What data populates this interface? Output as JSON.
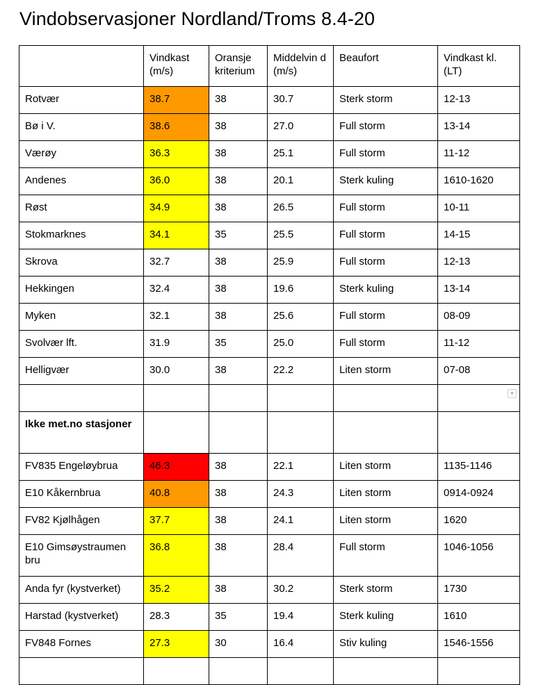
{
  "title": "Vindobservasjoner Nordland/Troms 8.4-20",
  "headers": [
    "",
    "Vindkast (m/s)",
    "Oransje kriterium",
    "Middelvin d (m/s)",
    "Beaufort",
    "Vindkast kl. (LT)"
  ],
  "colors": {
    "yellow": "#ffff00",
    "orange": "#ff9900",
    "red": "#ff0000"
  },
  "stations": [
    {
      "name": "Rotvær",
      "gust": "38.7",
      "gust_level": "orange",
      "criterion": "38",
      "mean": "30.7",
      "beaufort": "Sterk storm",
      "time": "12-13"
    },
    {
      "name": "Bø i V.",
      "gust": "38.6",
      "gust_level": "orange",
      "criterion": "38",
      "mean": "27.0",
      "beaufort": "Full storm",
      "time": "13-14"
    },
    {
      "name": "Værøy",
      "gust": "36.3",
      "gust_level": "yellow",
      "criterion": "38",
      "mean": "25.1",
      "beaufort": "Full storm",
      "time": "11-12"
    },
    {
      "name": "Andenes",
      "gust": "36.0",
      "gust_level": "yellow",
      "criterion": "38",
      "mean": "20.1",
      "beaufort": "Sterk kuling",
      "time": "1610-1620"
    },
    {
      "name": "Røst",
      "gust": "34.9",
      "gust_level": "yellow",
      "criterion": "38",
      "mean": "26.5",
      "beaufort": "Full storm",
      "time": "10-11"
    },
    {
      "name": "Stokmarknes",
      "gust": "34.1",
      "gust_level": "yellow",
      "criterion": "35",
      "mean": "25.5",
      "beaufort": "Full storm",
      "time": "14-15"
    },
    {
      "name": "Skrova",
      "gust": "32.7",
      "gust_level": "none",
      "criterion": "38",
      "mean": "25.9",
      "beaufort": "Full storm",
      "time": "12-13"
    },
    {
      "name": "Hekkingen",
      "gust": "32.4",
      "gust_level": "none",
      "criterion": "38",
      "mean": "19.6",
      "beaufort": "Sterk kuling",
      "time": "13-14"
    },
    {
      "name": "Myken",
      "gust": "32.1",
      "gust_level": "none",
      "criterion": "38",
      "mean": "25.6",
      "beaufort": "Full storm",
      "time": "08-09"
    },
    {
      "name": "Svolvær lft.",
      "gust": "31.9",
      "gust_level": "none",
      "criterion": "35",
      "mean": "25.0",
      "beaufort": "Full storm",
      "time": "11-12"
    },
    {
      "name": "Helligvær",
      "gust": "30.0",
      "gust_level": "none",
      "criterion": "38",
      "mean": "22.2",
      "beaufort": "Liten storm",
      "time": "07-08"
    }
  ],
  "section_label": "Ikke met.no stasjoner",
  "other_stations": [
    {
      "name": "FV835 Engeløybrua",
      "gust": "46.3",
      "gust_level": "red",
      "criterion": "38",
      "mean": "22.1",
      "beaufort": "Liten storm",
      "time": "1135-1146"
    },
    {
      "name": "E10 Kåkernbrua",
      "gust": "40.8",
      "gust_level": "orange",
      "criterion": "38",
      "mean": "24.3",
      "beaufort": "Liten storm",
      "time": "0914-0924"
    },
    {
      "name": "FV82 Kjølhågen",
      "gust": "37.7",
      "gust_level": "yellow",
      "criterion": "38",
      "mean": "24.1",
      "beaufort": "Liten storm",
      "time": "1620"
    },
    {
      "name": "E10 Gimsøystraumen bru",
      "gust": "36.8",
      "gust_level": "yellow",
      "criterion": "38",
      "mean": "28.4",
      "beaufort": "Full storm",
      "time": "1046-1056"
    },
    {
      "name": "Anda fyr (kystverket)",
      "gust": "35.2",
      "gust_level": "yellow",
      "criterion": "38",
      "mean": "30.2",
      "beaufort": "Sterk storm",
      "time": "1730"
    },
    {
      "name": "Harstad (kystverket)",
      "gust": "28.3",
      "gust_level": "none",
      "criterion": "35",
      "mean": "19.4",
      "beaufort": "Sterk kuling",
      "time": "1610"
    },
    {
      "name": "FV848 Fornes",
      "gust": "27.3",
      "gust_level": "yellow",
      "criterion": "30",
      "mean": "16.4",
      "beaufort": "Stiv kuling",
      "time": "1546-1556"
    }
  ],
  "filter_icon": "dropdown-arrow-icon"
}
